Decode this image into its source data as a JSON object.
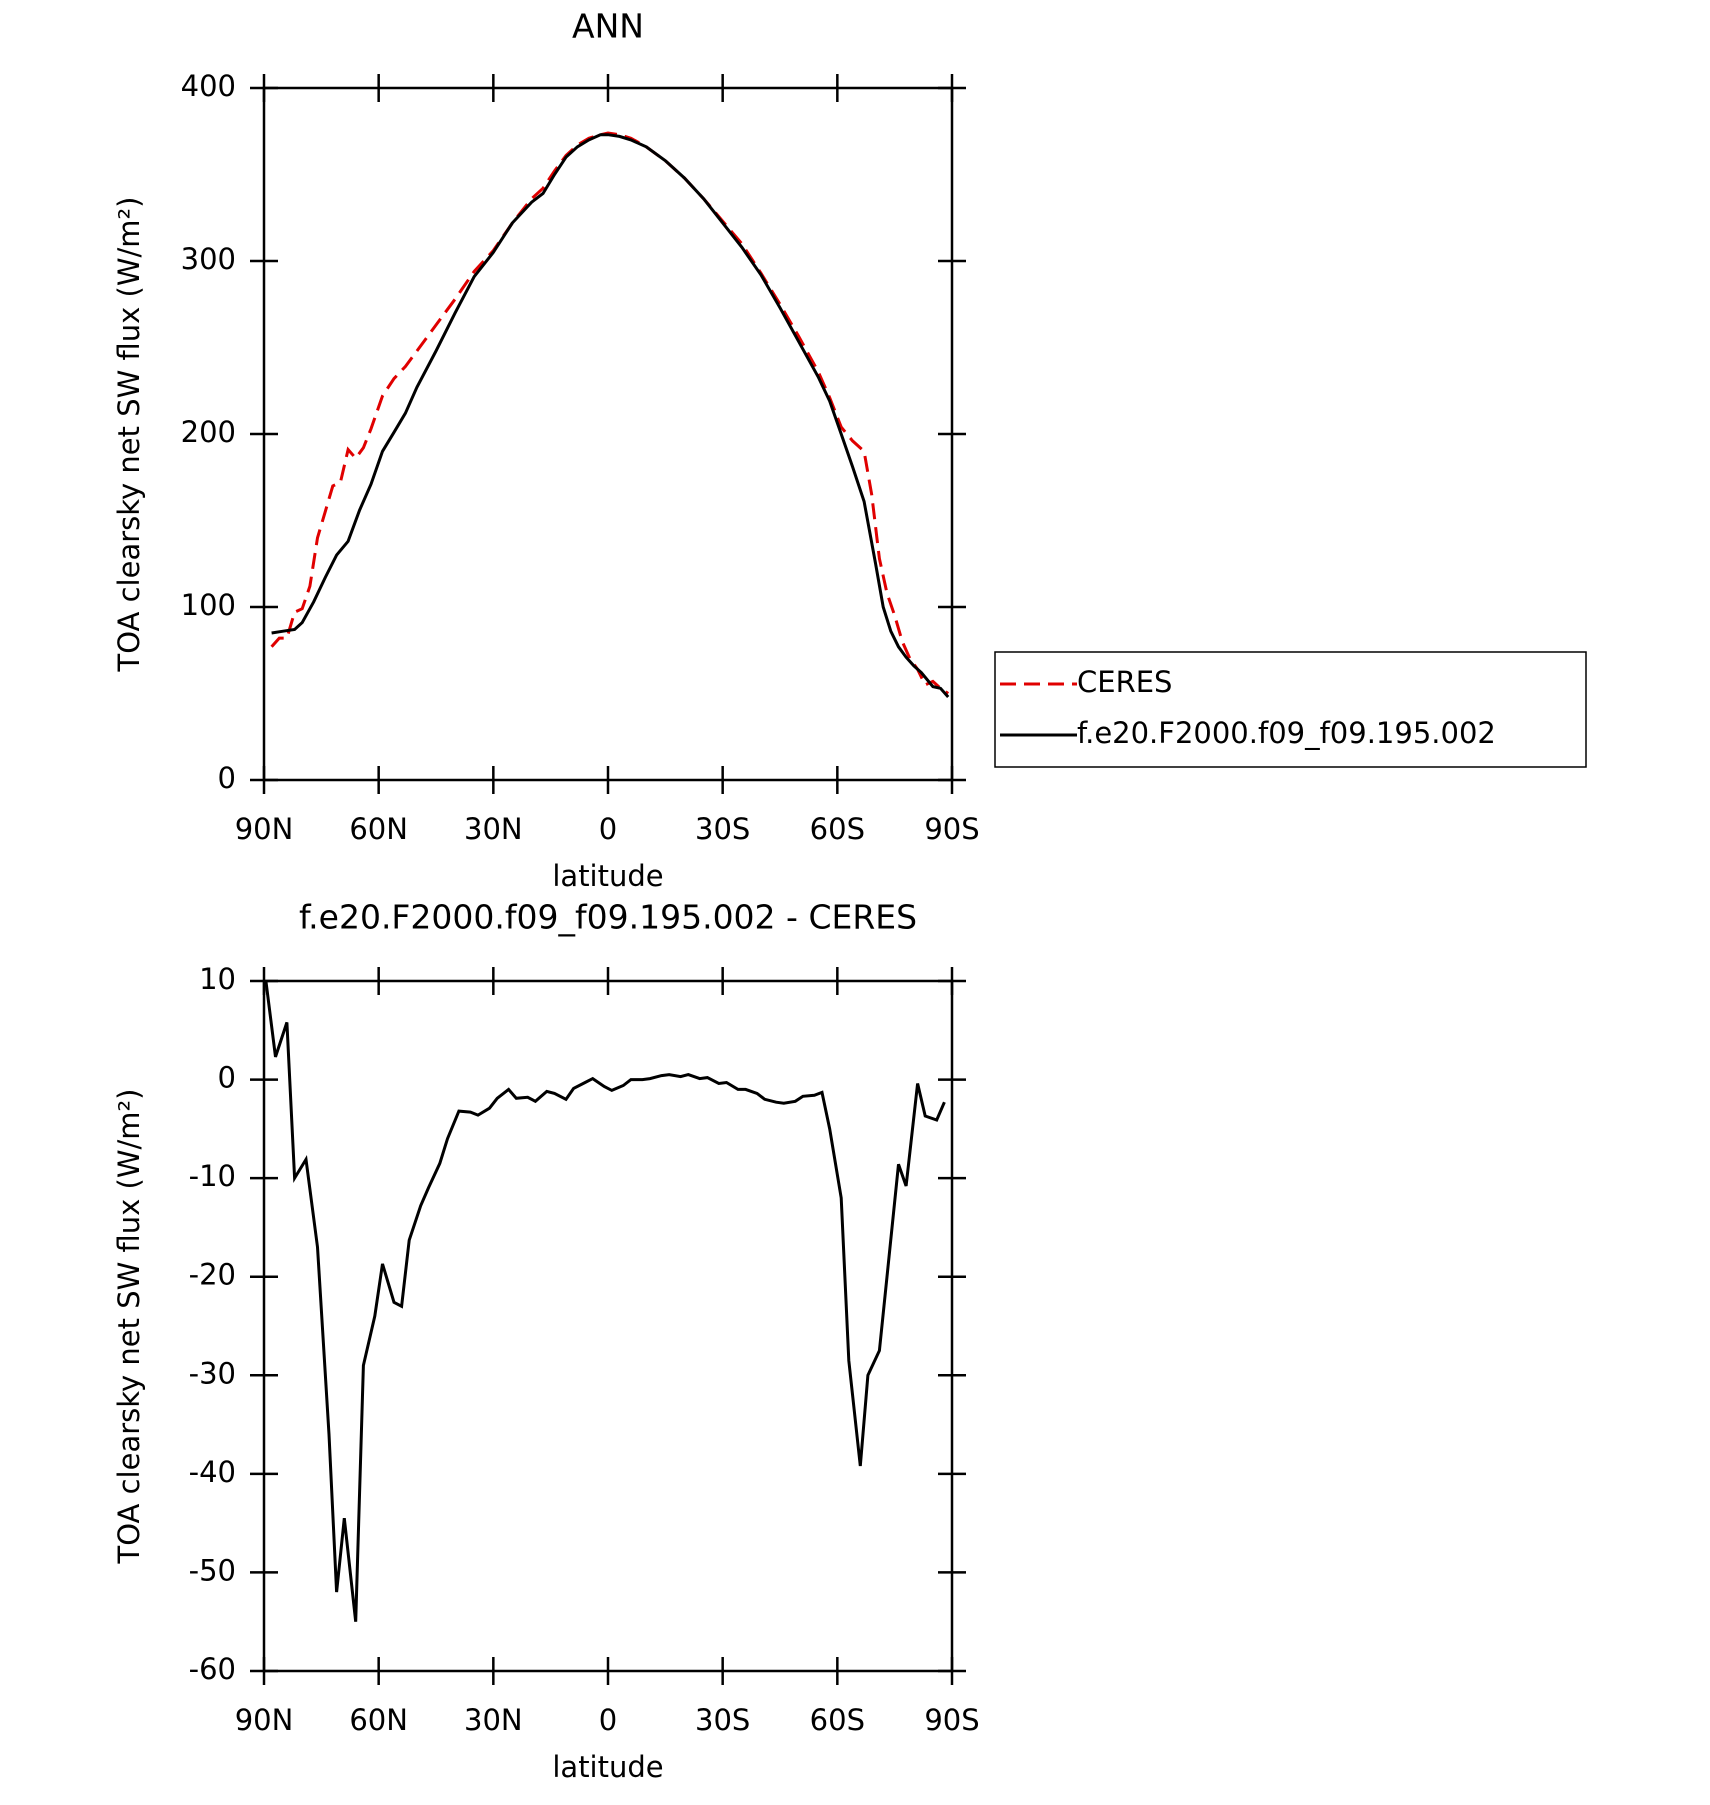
{
  "chart_data": [
    {
      "type": "line",
      "title": "ANN",
      "xlabel": "latitude",
      "ylabel": "TOA clearsky net SW flux (W/m²)",
      "xlim": [
        90,
        -90
      ],
      "xticks": [
        {
          "value": 90,
          "label": "90N"
        },
        {
          "value": 60,
          "label": "60N"
        },
        {
          "value": 30,
          "label": "30N"
        },
        0,
        {
          "value": -30,
          "label": "30S"
        },
        {
          "value": -60,
          "label": "60S"
        },
        {
          "value": -90,
          "label": "90S"
        }
      ],
      "ylim": [
        0,
        400
      ],
      "yticks": [
        0,
        100,
        200,
        300,
        400
      ],
      "legend": "right",
      "series": [
        {
          "name": "CERES",
          "color": "#e00000",
          "dash": true,
          "x": [
            88,
            86,
            84,
            82,
            80,
            78,
            76,
            74,
            72,
            70,
            68,
            66,
            64,
            62,
            59,
            56,
            53,
            50,
            45,
            40,
            35,
            30,
            25,
            20,
            17,
            14,
            11,
            8,
            5,
            2,
            0,
            -3,
            -6,
            -10,
            -15,
            -20,
            -25,
            -30,
            -35,
            -40,
            -45,
            -50,
            -55,
            -58,
            -61,
            -64,
            -67,
            -69,
            -71,
            -73,
            -75,
            -77,
            -79,
            -81,
            -83,
            -85,
            -87,
            -89
          ],
          "values": [
            77,
            82,
            82,
            97,
            99,
            112,
            140,
            155,
            170,
            172,
            191,
            186,
            192,
            203,
            222,
            232,
            239,
            248,
            263,
            278,
            294,
            306,
            322,
            336,
            342,
            352,
            361,
            367,
            371,
            373,
            374,
            373,
            371,
            366,
            358,
            348,
            336,
            323,
            310,
            293,
            275,
            256,
            236,
            221,
            204,
            196,
            190,
            165,
            128,
            108,
            95,
            80,
            70,
            64,
            55,
            57,
            53,
            50
          ]
        },
        {
          "name": "f.e20.F2000.f09_f09.195.002",
          "color": "#000000",
          "dash": false,
          "x": [
            88,
            85,
            82,
            80,
            77,
            74,
            71,
            68,
            65,
            62,
            59,
            56,
            53,
            50,
            45,
            40,
            35,
            30,
            25,
            20,
            17,
            14,
            11,
            8,
            5,
            2,
            0,
            -3,
            -6,
            -10,
            -15,
            -20,
            -25,
            -30,
            -35,
            -40,
            -45,
            -50,
            -55,
            -58,
            -61,
            -64,
            -67,
            -70,
            -72,
            -74,
            -76,
            -78,
            -80,
            -82,
            -85,
            -87,
            -89
          ],
          "values": [
            85,
            86,
            87,
            91,
            103,
            117,
            130,
            138,
            156,
            171,
            190,
            201,
            212,
            227,
            248,
            270,
            291,
            305,
            322,
            334,
            339,
            350,
            360,
            366,
            370,
            373,
            373,
            372,
            370,
            366,
            358,
            348,
            336,
            322,
            308,
            292,
            273,
            253,
            233,
            219,
            200,
            181,
            161,
            125,
            100,
            86,
            77,
            71,
            66,
            62,
            54,
            53,
            48
          ]
        }
      ]
    },
    {
      "type": "line",
      "title": "f.e20.F2000.f09_f09.195.002 - CERES",
      "xlabel": "latitude",
      "ylabel": "TOA clearsky net SW flux (W/m²)",
      "xlim": [
        90,
        -90
      ],
      "xticks": [
        {
          "value": 90,
          "label": "90N"
        },
        {
          "value": 60,
          "label": "60N"
        },
        {
          "value": 30,
          "label": "30N"
        },
        0,
        {
          "value": -30,
          "label": "30S"
        },
        {
          "value": -60,
          "label": "60S"
        },
        {
          "value": -90,
          "label": "90S"
        }
      ],
      "ylim": [
        -60,
        10
      ],
      "yticks": [
        10,
        0,
        -10,
        -20,
        -30,
        -40,
        -50,
        -60
      ],
      "series": [
        {
          "color": "#000000",
          "dash": false,
          "x": [
            89.5,
            87,
            84,
            82,
            79,
            76,
            73,
            71,
            69,
            66,
            64,
            61,
            59,
            56,
            54,
            52,
            49,
            47,
            44,
            42,
            39,
            36,
            34,
            31,
            29,
            26,
            24,
            21,
            19,
            16,
            14,
            11,
            9,
            6,
            4,
            1,
            -1,
            -4,
            -6,
            -9,
            -11,
            -14,
            -16,
            -19,
            -21,
            -24,
            -26,
            -29,
            -31,
            -34,
            -36,
            -39,
            -41,
            -44,
            -46,
            -49,
            -51,
            -54,
            -56,
            -58,
            -61,
            -63,
            -66,
            -68,
            -71,
            -73,
            -76,
            -78,
            -81,
            -83,
            -86,
            -88
          ],
          "values": [
            10,
            2.3,
            5.8,
            -10,
            -8.1,
            -17,
            -36,
            -52,
            -44.5,
            -55,
            -29,
            -24,
            -18.7,
            -22.6,
            -23,
            -16.3,
            -12.8,
            -11,
            -8.5,
            -6,
            -3.2,
            -3.3,
            -3.6,
            -2.9,
            -1.9,
            -1,
            -1.9,
            -1.8,
            -2.2,
            -1.2,
            -1.4,
            -2,
            -0.9,
            -0.3,
            0.1,
            -0.7,
            -1.1,
            -0.6,
            0,
            0,
            0.1,
            0.4,
            0.5,
            0.3,
            0.5,
            0.1,
            0.2,
            -0.4,
            -0.3,
            -1,
            -1,
            -1.4,
            -2,
            -2.3,
            -2.4,
            -2.2,
            -1.7,
            -1.6,
            -1.3,
            -5,
            -12,
            -28.5,
            -39.2,
            -30,
            -27.5,
            -20,
            -8.6,
            -10.8,
            -0.4,
            -3.7,
            -4.1,
            -2.3
          ]
        }
      ]
    }
  ]
}
